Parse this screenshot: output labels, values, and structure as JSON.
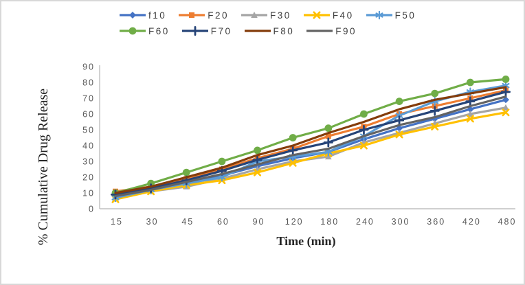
{
  "figure": {
    "border_color": "#D8D8D8",
    "background": "#FFFFFF"
  },
  "chart_data": {
    "type": "line",
    "title": "",
    "xlabel": "Time (min)",
    "ylabel": "% Cumulative Drug Release",
    "x_categories": [
      "15",
      "30",
      "45",
      "60",
      "90",
      "120",
      "180",
      "240",
      "300",
      "360",
      "420",
      "480"
    ],
    "y_ticks": [
      0,
      10,
      20,
      30,
      40,
      50,
      60,
      70,
      80,
      90
    ],
    "ylim": [
      0,
      90
    ],
    "grid": false,
    "legend_position": "top",
    "legend_row_break": 5,
    "axis_line_color": "#BFBFBF",
    "tick_text_color": "#595959",
    "legend_text_color": "#404040",
    "title_text_color": "#262626",
    "series": [
      {
        "name": "f10",
        "color": "#4472C4",
        "marker": "diamond",
        "values": [
          8,
          12,
          16,
          21,
          27,
          32,
          36,
          44,
          51,
          57,
          63,
          69
        ]
      },
      {
        "name": "F20",
        "color": "#ED7D31",
        "marker": "square",
        "values": [
          11,
          14,
          19,
          25,
          32,
          38,
          46,
          52,
          60,
          65,
          70,
          75
        ]
      },
      {
        "name": "F30",
        "color": "#A5A5A5",
        "marker": "triangle",
        "values": [
          7,
          11,
          14,
          19,
          25,
          30,
          33,
          42,
          48,
          54,
          60,
          64
        ]
      },
      {
        "name": "F40",
        "color": "#FFC000",
        "marker": "x",
        "values": [
          6,
          11,
          15,
          18,
          23,
          29,
          35,
          40,
          47,
          52,
          57,
          61
        ]
      },
      {
        "name": "F50",
        "color": "#5B9BD5",
        "marker": "asterisk",
        "values": [
          7,
          12,
          16,
          20,
          30,
          33,
          36,
          46,
          59,
          68,
          74,
          78
        ]
      },
      {
        "name": "F60",
        "color": "#70AD47",
        "marker": "circle",
        "values": [
          10,
          16,
          23,
          30,
          37,
          45,
          51,
          60,
          68,
          73,
          80,
          82
        ]
      },
      {
        "name": "F70",
        "color": "#264478",
        "marker": "plus",
        "values": [
          9,
          13,
          18,
          24,
          31,
          37,
          42,
          50,
          56,
          62,
          68,
          74
        ]
      },
      {
        "name": "F80",
        "color": "#843C0B",
        "marker": "dash",
        "values": [
          10,
          14,
          20,
          26,
          34,
          40,
          48,
          55,
          63,
          69,
          73,
          77
        ]
      },
      {
        "name": "F90",
        "color": "#636363",
        "marker": "dash",
        "values": [
          8,
          12,
          17,
          22,
          28,
          34,
          38,
          46,
          53,
          58,
          65,
          71
        ]
      }
    ]
  }
}
